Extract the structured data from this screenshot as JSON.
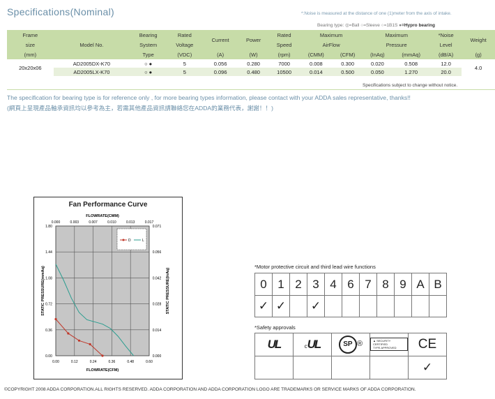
{
  "spec": {
    "title": "Specifications(Nominal)",
    "noise_note": "*:Noise is measured at the distance of one (1)meter from the axis of intake.",
    "bearing_legend": {
      "prefix": "Bearing type:",
      "ball": "=Ball",
      "sleeve": "=Sleeve",
      "one_b1s": "=1B1S",
      "hypro": "=Hypro bearing"
    },
    "headers": {
      "frame": [
        "Frame",
        "size",
        "(mm)"
      ],
      "model": "Model No.",
      "bearing": [
        "Bearing",
        "System",
        "Type"
      ],
      "voltage": [
        "Rated",
        "Voltage",
        "(VDC)"
      ],
      "current": [
        "Current",
        "(A)"
      ],
      "power": [
        "Power",
        "(W)"
      ],
      "speed": [
        "Rated",
        "Speed",
        "(rpm)"
      ],
      "airflow": [
        "Maximum",
        "AirFlow"
      ],
      "airflow_units": [
        "(CMM)",
        "(CFM)"
      ],
      "pressure": [
        "Maximum",
        "Pressure"
      ],
      "pressure_units": [
        "(InAq)",
        "(mmAq)"
      ],
      "noise": [
        "*Noise",
        "Level",
        "(dB/A)"
      ],
      "weight": [
        "Weight",
        "(g)"
      ]
    },
    "frame_size": "20x20x06",
    "weight": "4.0",
    "rows": [
      {
        "model": "AD2005DX-K70",
        "voltage": "5",
        "current": "0.056",
        "power": "0.280",
        "speed": "7000",
        "cmm": "0.008",
        "cfm": "0.300",
        "inaq": "0.020",
        "mmaq": "0.508",
        "noise": "12.0"
      },
      {
        "model": "AD2005LX-K70",
        "voltage": "5",
        "current": "0.096",
        "power": "0.480",
        "speed": "10500",
        "cmm": "0.014",
        "cfm": "0.500",
        "inaq": "0.050",
        "mmaq": "1.270",
        "noise": "20.0"
      }
    ],
    "subject_note": "Specifications subject to change without notice."
  },
  "info": {
    "english": "The specification for bearing type is for reference only , for more bearing types information, please contact with your ADDA sales representative, thanks!!",
    "chinese": "(網頁上呈現產品軸承資訊均以參考為主，若需其他產品資訊請聯絡您在ADDA的業務代表，謝謝！！)"
  },
  "chart_data": {
    "type": "line",
    "title": "Fan Performance Curve",
    "top_axis_label": "FLOWRATE(CMM)",
    "top_ticks": [
      "0.000",
      "0.003",
      "0.007",
      "0.010",
      "0.013",
      "0.017"
    ],
    "xlabel": "FLOWRATE(CFM)",
    "x_ticks": [
      "0.00",
      "0.12",
      "0.24",
      "0.36",
      "0.48",
      "0.60"
    ],
    "ylabel": "STATIC PRESSURE(mmAq)",
    "y_ticks": [
      "0.00",
      "0.36",
      "0.72",
      "1.08",
      "1.44",
      "1.80"
    ],
    "y2label": "STATIC PRESSURE(InAq)",
    "y2_ticks": [
      "0.000",
      "0.014",
      "0.028",
      "0.042",
      "0.056",
      "0.071"
    ],
    "xlim": [
      0,
      0.6
    ],
    "ylim": [
      0,
      1.8
    ],
    "grid": true,
    "legend_position": "top-right",
    "series": [
      {
        "name": "D",
        "color": "#c0392b",
        "markers": true,
        "x": [
          0.0,
          0.08,
          0.15,
          0.22,
          0.3
        ],
        "y": [
          0.508,
          0.31,
          0.21,
          0.16,
          0.0
        ]
      },
      {
        "name": "L",
        "color": "#2a9d8f",
        "markers": false,
        "x": [
          0.0,
          0.05,
          0.1,
          0.15,
          0.2,
          0.25,
          0.3,
          0.35,
          0.4,
          0.45,
          0.5
        ],
        "y": [
          1.27,
          1.05,
          0.8,
          0.6,
          0.5,
          0.47,
          0.44,
          0.38,
          0.27,
          0.13,
          0.0
        ]
      }
    ]
  },
  "motor": {
    "label": "*Motor protective circuit and third lead wire functions",
    "codes": [
      "0",
      "1",
      "2",
      "3",
      "4",
      "6",
      "7",
      "8",
      "9",
      "A",
      "B"
    ],
    "checked": [
      true,
      true,
      false,
      true,
      false,
      false,
      false,
      false,
      false,
      false,
      false
    ]
  },
  "safety": {
    "label": "*Safety approvals",
    "ul": "UL",
    "cul_c": "c",
    "cul": "UL",
    "csa": "SP",
    "tuv_text": "SECURITY CERTIFIED",
    "tuv_sub": "TYPE APPROVED",
    "ce": "CE",
    "checked": [
      false,
      false,
      false,
      false,
      true
    ]
  },
  "copyright": "©COPYRIGHT 2008 ADDA CORPORATION.ALL RIGHTS RESERVED. ADDA CORPORATION AND ADDA CORPORATION LOGO ARE TRADEMARKS OR SERVICE MARKS OF ADDA CORPORATION.",
  "colors": {
    "header_bg": "#c7dca8",
    "row_alt": "#e8f0dc",
    "title": "#6a8fa8"
  }
}
